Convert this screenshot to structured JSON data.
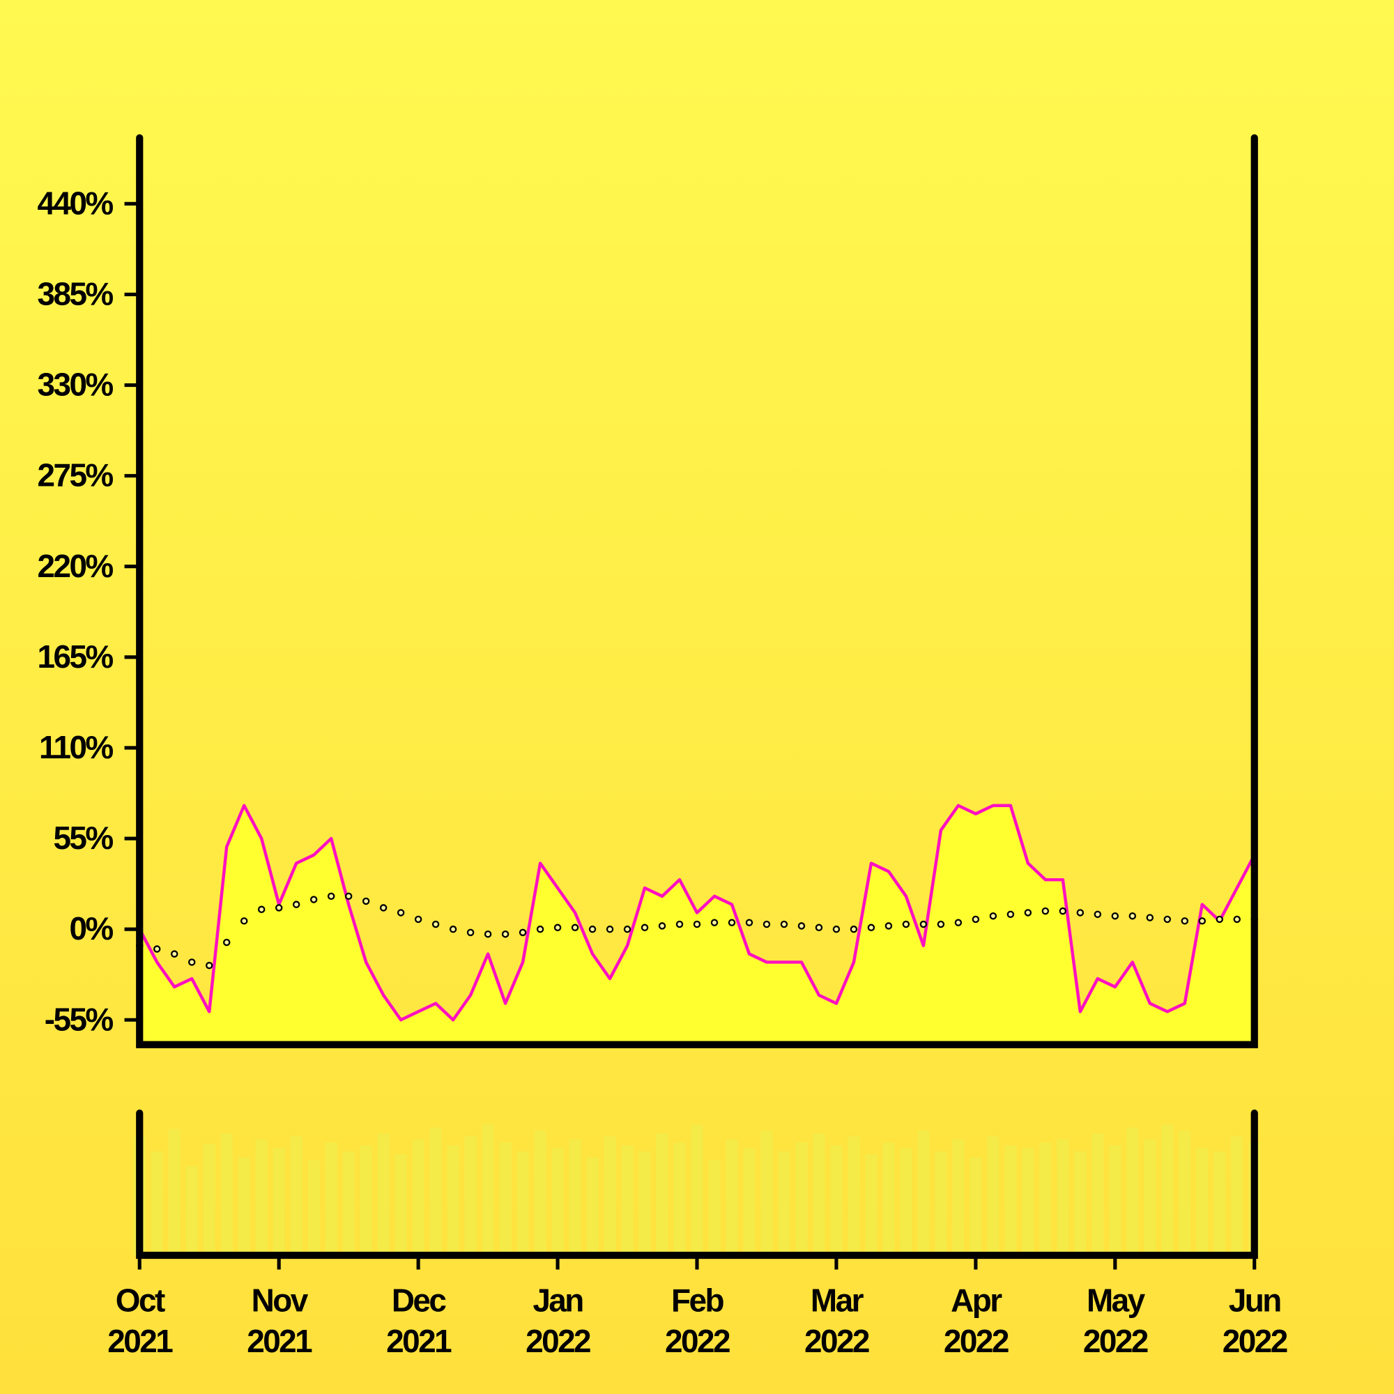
{
  "chart_data": {
    "type": "line",
    "x": [
      0,
      0.125,
      0.25,
      0.375,
      0.5,
      0.625,
      0.75,
      0.875,
      1,
      1.125,
      1.25,
      1.375,
      1.5,
      1.625,
      1.75,
      1.875,
      2,
      2.125,
      2.25,
      2.375,
      2.5,
      2.625,
      2.75,
      2.875,
      3,
      3.125,
      3.25,
      3.375,
      3.5,
      3.625,
      3.75,
      3.875,
      4,
      4.125,
      4.25,
      4.375,
      4.5,
      4.625,
      4.75,
      4.875,
      5,
      5.125,
      5.25,
      5.375,
      5.5,
      5.625,
      5.75,
      5.875,
      6,
      6.125,
      6.25,
      6.375,
      6.5,
      6.625,
      6.75,
      6.875,
      7,
      7.125,
      7.25,
      7.375,
      7.5,
      7.625,
      7.75,
      7.875,
      8
    ],
    "series": [
      {
        "color": "#ff10c0",
        "fill": "#ffff30",
        "values": [
          0,
          -20,
          -35,
          -30,
          -50,
          50,
          75,
          55,
          15,
          40,
          45,
          55,
          15,
          -20,
          -40,
          -55,
          -50,
          -45,
          -55,
          -40,
          -15,
          -45,
          -20,
          40,
          25,
          10,
          -15,
          -30,
          -10,
          25,
          20,
          30,
          10,
          20,
          15,
          -15,
          -20,
          -20,
          -20,
          -40,
          -45,
          -20,
          40,
          35,
          20,
          -10,
          60,
          75,
          70,
          75,
          75,
          40,
          30,
          30,
          -50,
          -30,
          -35,
          -20,
          -45,
          -50,
          -45,
          15,
          5,
          25,
          45
        ]
      },
      {
        "color": "#000000",
        "marker": "dots",
        "values": [
          -10,
          -12,
          -15,
          -20,
          -22,
          -8,
          5,
          12,
          13,
          15,
          18,
          20,
          20,
          17,
          13,
          10,
          6,
          3,
          0,
          -2,
          -3,
          -3,
          -2,
          0,
          1,
          1,
          0,
          0,
          0,
          1,
          2,
          3,
          3,
          4,
          4,
          4,
          3,
          3,
          2,
          1,
          0,
          0,
          1,
          2,
          3,
          3,
          3,
          4,
          6,
          8,
          9,
          10,
          11,
          11,
          10,
          9,
          8,
          8,
          7,
          6,
          5,
          5,
          6,
          6,
          6
        ]
      }
    ],
    "volume": {
      "color": "#f4ea48",
      "values": [
        80,
        70,
        85,
        60,
        75,
        82,
        66,
        78,
        72,
        80,
        64,
        76,
        70,
        74,
        82,
        68,
        78,
        86,
        74,
        80,
        88,
        76,
        70,
        84,
        72,
        78,
        66,
        80,
        74,
        70,
        82,
        76,
        88,
        64,
        78,
        72,
        84,
        70,
        76,
        82,
        74,
        80,
        68,
        76,
        72,
        84,
        70,
        78,
        66,
        80,
        74,
        72,
        76,
        78,
        70,
        82,
        74,
        86,
        78,
        88,
        84,
        72,
        70,
        80,
        76
      ]
    },
    "ylim": [
      -70,
      480
    ],
    "yticks": [
      {
        "value": -55,
        "label": "-55%"
      },
      {
        "value": 0,
        "label": "0%"
      },
      {
        "value": 55,
        "label": "55%"
      },
      {
        "value": 110,
        "label": "110%"
      },
      {
        "value": 165,
        "label": "165%"
      },
      {
        "value": 220,
        "label": "220%"
      },
      {
        "value": 275,
        "label": "275%"
      },
      {
        "value": 330,
        "label": "330%"
      },
      {
        "value": 385,
        "label": "385%"
      },
      {
        "value": 440,
        "label": "440%"
      }
    ],
    "xlim": [
      0,
      8
    ],
    "xticks": [
      {
        "value": 0,
        "label": "Oct 2021"
      },
      {
        "value": 1,
        "label": "Nov 2021"
      },
      {
        "value": 2,
        "label": "Dec 2021"
      },
      {
        "value": 3,
        "label": "Jan 2022"
      },
      {
        "value": 4,
        "label": "Feb 2022"
      },
      {
        "value": 5,
        "label": "Mar 2022"
      },
      {
        "value": 6,
        "label": "Apr 2022"
      },
      {
        "value": 7,
        "label": "May 2022"
      },
      {
        "value": 8,
        "label": "Jun 2022"
      }
    ]
  }
}
